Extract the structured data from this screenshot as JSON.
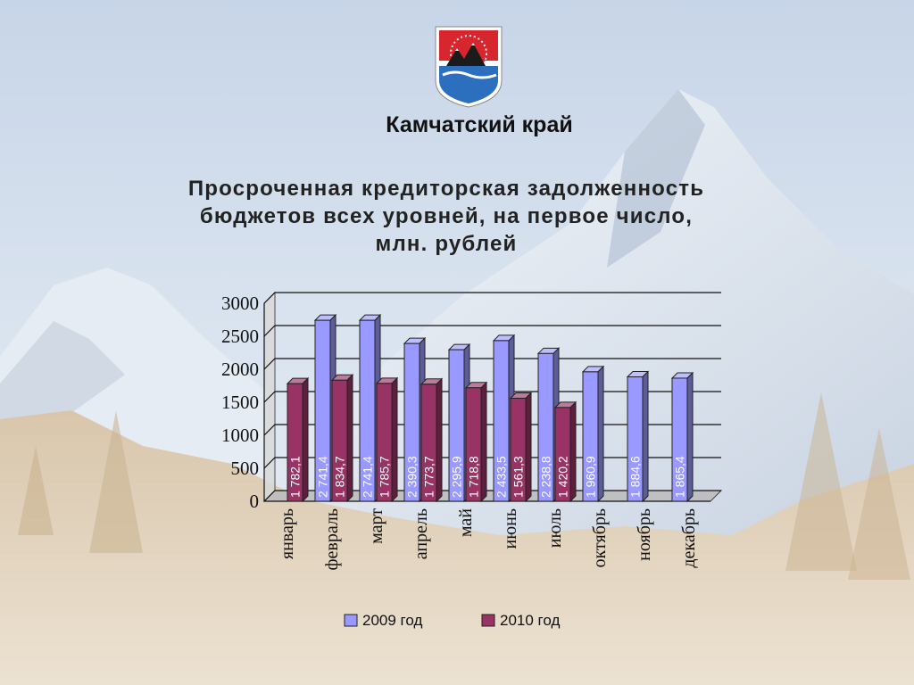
{
  "header": {
    "region": "Камчатский край"
  },
  "chart_data": {
    "type": "bar",
    "title_lines": [
      "Просроченная кредиторская задолженность",
      "бюджетов всех уровней, на первое число,",
      "млн. рублей"
    ],
    "categories": [
      "январь",
      "февраль",
      "март",
      "апрель",
      "май",
      "июнь",
      "июль",
      "октябрь",
      "ноябрь",
      "декабрь"
    ],
    "series": [
      {
        "name": "2009 год",
        "color": "#9999ff",
        "values": [
          null,
          2741.4,
          2741.4,
          2390.3,
          2295.9,
          2433.5,
          2238.8,
          1960.9,
          1884.6,
          1865.4
        ],
        "labels": [
          "",
          "2 741,4",
          "2 741,4",
          "2 390,3",
          "2 295,9",
          "2 433,5",
          "2 238,8",
          "1 960,9",
          "1 884,6",
          "1 865,4"
        ]
      },
      {
        "name": "2010 год",
        "color": "#993366",
        "values": [
          1782.1,
          1834.7,
          1785.7,
          1773.7,
          1718.8,
          1561.3,
          1420.2,
          null,
          null,
          null
        ],
        "labels": [
          "1 782,1",
          "1 834,7",
          "1 785,7",
          "1 773,7",
          "1 718,8",
          "1 561,3",
          "1 420,2",
          "",
          "",
          ""
        ]
      }
    ],
    "ylim": [
      0,
      3000
    ],
    "yticks": [
      "0",
      "500",
      "1000",
      "1500",
      "2000",
      "2500",
      "3000"
    ],
    "ytick_values": [
      0,
      500,
      1000,
      1500,
      2000,
      2500,
      3000
    ],
    "grid": true,
    "legend_position": "bottom"
  }
}
